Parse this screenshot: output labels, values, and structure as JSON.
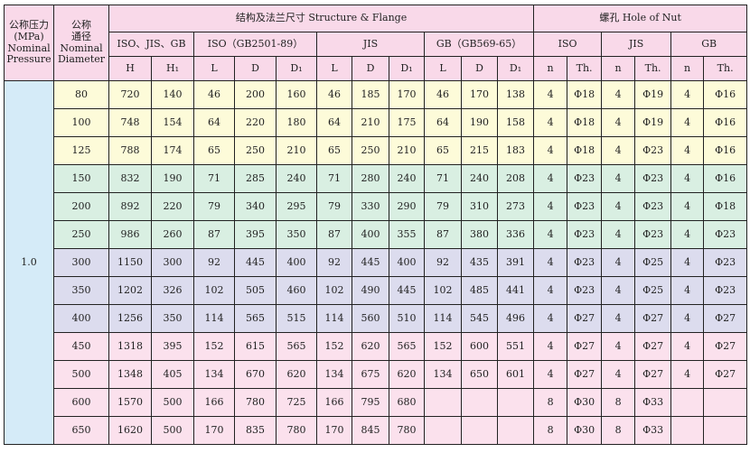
{
  "headers": {
    "pressure": [
      "公称压力",
      "(MPa)",
      "Nominal",
      "Pressure"
    ],
    "diameter": [
      "公称",
      "通径",
      "Nominal",
      "Diameter"
    ],
    "structure": "结构及法兰尺寸 Structure & Flange",
    "hole": "螺孔 Hole of Nut",
    "groups": [
      "ISO、JIS、GB",
      "ISO（GB2501-89）",
      "JIS",
      "GB（GB569-65）",
      "ISO",
      "JIS",
      "GB"
    ],
    "columns": [
      "H",
      "H₁",
      "L",
      "D",
      "D₁",
      "L",
      "D",
      "D₁",
      "L",
      "D",
      "D₁",
      "n",
      "Th.",
      "n",
      "Th.",
      "n",
      "Th."
    ]
  },
  "pressure_value": "1.0",
  "row_colors": {
    "yellow": "#fdfbd9",
    "green": "#d9efe2",
    "lavender": "#dcdcee",
    "pink": "#fbe1ed",
    "header": "#f9d9e9",
    "pressure": "#d5ebf8"
  },
  "rows": [
    {
      "band": "y",
      "cells": [
        "80",
        "720",
        "140",
        "46",
        "200",
        "160",
        "46",
        "185",
        "170",
        "46",
        "170",
        "138",
        "4",
        "Φ18",
        "4",
        "Φ19",
        "4",
        "Φ16"
      ]
    },
    {
      "band": "y",
      "cells": [
        "100",
        "748",
        "154",
        "64",
        "220",
        "180",
        "64",
        "210",
        "175",
        "64",
        "190",
        "158",
        "4",
        "Φ18",
        "4",
        "Φ19",
        "4",
        "Φ16"
      ]
    },
    {
      "band": "y",
      "cells": [
        "125",
        "788",
        "174",
        "65",
        "250",
        "210",
        "65",
        "250",
        "210",
        "65",
        "215",
        "183",
        "4",
        "Φ18",
        "4",
        "Φ23",
        "4",
        "Φ16"
      ]
    },
    {
      "band": "g",
      "cells": [
        "150",
        "832",
        "190",
        "71",
        "285",
        "240",
        "71",
        "280",
        "240",
        "71",
        "240",
        "208",
        "4",
        "Φ23",
        "4",
        "Φ23",
        "4",
        "Φ16"
      ]
    },
    {
      "band": "g",
      "cells": [
        "200",
        "892",
        "220",
        "79",
        "340",
        "295",
        "79",
        "330",
        "290",
        "79",
        "310",
        "273",
        "4",
        "Φ23",
        "4",
        "Φ23",
        "4",
        "Φ18"
      ]
    },
    {
      "band": "g",
      "cells": [
        "250",
        "986",
        "260",
        "87",
        "395",
        "350",
        "87",
        "400",
        "355",
        "87",
        "380",
        "336",
        "4",
        "Φ23",
        "4",
        "Φ23",
        "4",
        "Φ23"
      ]
    },
    {
      "band": "v",
      "cells": [
        "300",
        "1150",
        "300",
        "92",
        "445",
        "400",
        "92",
        "445",
        "400",
        "92",
        "435",
        "391",
        "4",
        "Φ23",
        "4",
        "Φ25",
        "4",
        "Φ23"
      ]
    },
    {
      "band": "v",
      "cells": [
        "350",
        "1202",
        "326",
        "102",
        "505",
        "460",
        "102",
        "490",
        "445",
        "102",
        "485",
        "441",
        "4",
        "Φ23",
        "4",
        "Φ25",
        "4",
        "Φ23"
      ]
    },
    {
      "band": "v",
      "cells": [
        "400",
        "1256",
        "350",
        "114",
        "565",
        "515",
        "114",
        "560",
        "510",
        "114",
        "545",
        "496",
        "4",
        "Φ27",
        "4",
        "Φ27",
        "4",
        "Φ27"
      ]
    },
    {
      "band": "p",
      "cells": [
        "450",
        "1318",
        "395",
        "152",
        "615",
        "565",
        "152",
        "620",
        "565",
        "152",
        "600",
        "551",
        "4",
        "Φ27",
        "4",
        "Φ27",
        "4",
        "Φ27"
      ]
    },
    {
      "band": "p",
      "cells": [
        "500",
        "1348",
        "405",
        "134",
        "670",
        "620",
        "134",
        "675",
        "620",
        "134",
        "650",
        "601",
        "4",
        "Φ27",
        "4",
        "Φ27",
        "4",
        "Φ27"
      ]
    },
    {
      "band": "p",
      "cells": [
        "600",
        "1570",
        "500",
        "166",
        "780",
        "725",
        "166",
        "795",
        "680",
        "",
        "",
        "",
        "8",
        "Φ30",
        "8",
        "Φ33",
        "",
        ""
      ]
    },
    {
      "band": "p",
      "cells": [
        "650",
        "1620",
        "500",
        "170",
        "835",
        "780",
        "170",
        "845",
        "780",
        "",
        "",
        "",
        "8",
        "Φ30",
        "8",
        "Φ33",
        "",
        ""
      ]
    }
  ]
}
